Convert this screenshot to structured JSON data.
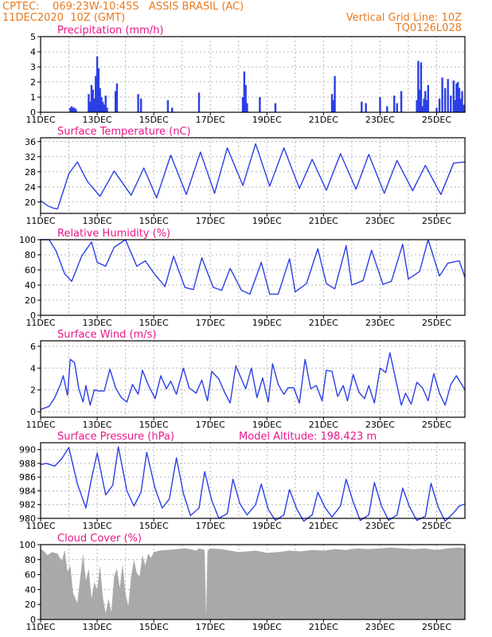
{
  "header": {
    "line1": "CPTEC:    069:23W-10:45S   ASSIS BRASIL (AC)",
    "line2": "11DEC2020  10Z (GMT)",
    "grid_note": "Vertical Grid Line: 10Z",
    "model_code": "TQ0126L028"
  },
  "colors": {
    "header": "#e87a1e",
    "title": "#e8178a",
    "series": "#2b3fe6",
    "cloud": "#a9a9a9",
    "frame": "#000000",
    "grid": "#b4b4b4"
  },
  "time_axis": {
    "start": "11DEC2020 10Z",
    "end": "26DEC2020 10Z",
    "tick_dates": [
      "11DEC",
      "13DEC",
      "15DEC",
      "17DEC",
      "19DEC",
      "21DEC",
      "23DEC",
      "25DEC"
    ],
    "minor_grid_days": [
      "12DEC",
      "14DEC",
      "16DEC",
      "18DEC",
      "20DEC",
      "22DEC",
      "24DEC"
    ]
  },
  "chart_data": [
    {
      "id": "precip",
      "type": "bar",
      "title": "Precipitation (mm/h)",
      "ylim": [
        0,
        5
      ],
      "yticks": [
        0,
        1,
        2,
        3,
        4,
        5
      ],
      "days": [
        1.05,
        1.1,
        1.15,
        1.2,
        1.25,
        1.7,
        1.75,
        1.8,
        1.85,
        1.9,
        1.95,
        2.0,
        2.05,
        2.1,
        2.15,
        2.2,
        2.25,
        2.3,
        2.35,
        2.65,
        2.7,
        3.45,
        3.55,
        4.5,
        4.65,
        5.6,
        7.15,
        7.2,
        7.25,
        7.3,
        7.75,
        8.3,
        10.3,
        10.35,
        10.4,
        11.35,
        11.5,
        12.0,
        12.25,
        12.5,
        12.6,
        12.75,
        13.3,
        13.35,
        13.4,
        13.45,
        13.5,
        13.55,
        13.6,
        13.65,
        13.7,
        14.0,
        14.1,
        14.2,
        14.3,
        14.4,
        14.5,
        14.6,
        14.65,
        14.7,
        14.75,
        14.8,
        14.85,
        14.9,
        14.95
      ],
      "values": [
        0.3,
        0.4,
        0.3,
        0.3,
        0.2,
        1.2,
        0.7,
        1.8,
        1.5,
        0.9,
        2.4,
        3.7,
        2.9,
        1.6,
        1.0,
        0.7,
        0.5,
        1.1,
        0.3,
        1.4,
        1.9,
        1.2,
        0.9,
        0.8,
        0.3,
        1.3,
        1.0,
        2.7,
        1.8,
        0.6,
        1.0,
        0.6,
        1.2,
        0.8,
        2.4,
        0.7,
        0.6,
        1.0,
        0.4,
        1.1,
        0.6,
        1.4,
        0.8,
        3.4,
        1.5,
        3.3,
        0.4,
        0.9,
        1.4,
        0.8,
        1.8,
        0.3,
        0.9,
        2.3,
        1.6,
        2.2,
        1.1,
        2.1,
        0.8,
        1.9,
        2.0,
        1.6,
        0.9,
        1.4,
        0.5
      ]
    },
    {
      "id": "temp",
      "type": "line",
      "title": "Surface Temperature (nC)",
      "ylim": [
        17,
        37
      ],
      "yticks": [
        20,
        24,
        28,
        32,
        36
      ],
      "days": [
        0,
        0.25,
        0.45,
        0.6,
        1.0,
        1.3,
        1.65,
        2.1,
        2.6,
        3.2,
        3.65,
        4.1,
        4.6,
        5.15,
        5.65,
        6.15,
        6.6,
        7.15,
        7.6,
        8.1,
        8.6,
        9.15,
        9.6,
        10.1,
        10.6,
        11.15,
        11.6,
        12.15,
        12.6,
        13.15,
        13.6,
        14.15,
        14.6,
        15.0
      ],
      "values": [
        20.4,
        19.0,
        18.4,
        18.2,
        27.5,
        30.6,
        25.5,
        21.5,
        28.2,
        21.8,
        29.0,
        21.1,
        32.4,
        22.0,
        33.2,
        22.3,
        34.3,
        24.4,
        35.4,
        24.2,
        34.3,
        23.6,
        31.3,
        23.1,
        32.8,
        23.4,
        32.6,
        22.3,
        31.0,
        23.0,
        29.7,
        22.0,
        30.3,
        30.6
      ]
    },
    {
      "id": "rh",
      "type": "line",
      "title": "Relative Humidity (%)",
      "ylim": [
        0,
        100
      ],
      "yticks": [
        0,
        20,
        40,
        60,
        80,
        100
      ],
      "days": [
        0,
        0.3,
        0.55,
        0.85,
        1.1,
        1.45,
        1.8,
        2.0,
        2.3,
        2.6,
        3.0,
        3.4,
        3.7,
        4.0,
        4.4,
        4.7,
        5.1,
        5.4,
        5.7,
        6.1,
        6.4,
        6.7,
        7.1,
        7.4,
        7.8,
        8.1,
        8.4,
        8.8,
        9.0,
        9.4,
        9.8,
        10.1,
        10.4,
        10.8,
        11.0,
        11.4,
        11.7,
        12.1,
        12.4,
        12.8,
        13.0,
        13.4,
        13.7,
        14.1,
        14.4,
        14.8,
        15.0
      ],
      "values": [
        100,
        100,
        85,
        55,
        45,
        78,
        97,
        70,
        65,
        90,
        100,
        65,
        72,
        56,
        38,
        78,
        37,
        34,
        76,
        37,
        33,
        62,
        33,
        28,
        70,
        28,
        28,
        75,
        31,
        42,
        88,
        42,
        35,
        92,
        40,
        46,
        86,
        41,
        45,
        94,
        48,
        58,
        100,
        52,
        69,
        72,
        50
      ]
    },
    {
      "id": "wind",
      "type": "line",
      "title": "Surface Wind (m/s)",
      "ylim": [
        -0.5,
        6.5
      ],
      "yticks": [
        0,
        2,
        4,
        6
      ],
      "days": [
        0.0,
        0.3,
        0.5,
        0.7,
        0.8,
        0.95,
        1.05,
        1.2,
        1.35,
        1.5,
        1.6,
        1.75,
        1.9,
        2.05,
        2.25,
        2.45,
        2.65,
        2.85,
        3.05,
        3.25,
        3.45,
        3.6,
        3.8,
        4.05,
        4.25,
        4.45,
        4.6,
        4.8,
        5.05,
        5.25,
        5.5,
        5.7,
        5.9,
        6.05,
        6.3,
        6.5,
        6.7,
        6.9,
        7.05,
        7.25,
        7.45,
        7.65,
        7.85,
        8.05,
        8.2,
        8.4,
        8.6,
        8.75,
        8.95,
        9.15,
        9.35,
        9.55,
        9.75,
        9.95,
        10.1,
        10.3,
        10.5,
        10.7,
        10.85,
        11.05,
        11.25,
        11.45,
        11.6,
        11.8,
        12.0,
        12.2,
        12.35,
        12.55,
        12.75,
        12.9,
        13.1,
        13.3,
        13.5,
        13.7,
        13.9,
        14.1,
        14.3,
        14.5,
        14.7,
        15.0
      ],
      "values": [
        0.2,
        0.5,
        1.3,
        2.5,
        3.3,
        1.5,
        4.8,
        4.5,
        2.1,
        0.9,
        2.4,
        0.6,
        2.0,
        1.9,
        1.9,
        3.9,
        2.2,
        1.3,
        0.9,
        2.5,
        1.6,
        3.8,
        2.5,
        1.2,
        3.3,
        2.1,
        2.8,
        1.6,
        4.0,
        2.2,
        1.7,
        2.9,
        1.0,
        3.7,
        3.0,
        1.8,
        0.8,
        4.2,
        3.3,
        2.1,
        4.0,
        1.3,
        3.1,
        0.9,
        4.4,
        2.5,
        1.6,
        2.2,
        2.2,
        0.8,
        4.8,
        2.1,
        2.4,
        1.0,
        3.8,
        3.7,
        1.4,
        2.4,
        1.0,
        3.4,
        1.8,
        1.2,
        2.4,
        0.8,
        4.0,
        3.6,
        5.4,
        3.0,
        0.6,
        1.7,
        0.7,
        2.7,
        2.2,
        1.0,
        3.5,
        1.7,
        0.6,
        2.5,
        3.3,
        2.0
      ]
    },
    {
      "id": "pres",
      "type": "line",
      "title": "Surface Pressure (hPa)",
      "annotation": "Model Altitude: 198.423 m",
      "ylim": [
        980,
        991
      ],
      "yticks": [
        980,
        982,
        984,
        986,
        988,
        990
      ],
      "days": [
        0,
        0.2,
        0.5,
        0.75,
        1.0,
        1.3,
        1.6,
        1.8,
        2.0,
        2.3,
        2.55,
        2.75,
        3.05,
        3.3,
        3.55,
        3.75,
        4.05,
        4.3,
        4.55,
        4.8,
        5.05,
        5.3,
        5.6,
        5.8,
        6.05,
        6.3,
        6.6,
        6.8,
        7.05,
        7.3,
        7.6,
        7.8,
        8.05,
        8.3,
        8.6,
        8.8,
        9.05,
        9.3,
        9.6,
        9.8,
        10.05,
        10.3,
        10.6,
        10.8,
        11.05,
        11.3,
        11.6,
        11.8,
        12.05,
        12.3,
        12.6,
        12.8,
        13.05,
        13.3,
        13.6,
        13.8,
        14.05,
        14.3,
        14.6,
        14.8,
        15.0
      ],
      "values": [
        987.8,
        988.0,
        987.6,
        988.7,
        990.3,
        985.0,
        981.5,
        985.8,
        989.5,
        983.4,
        984.8,
        990.4,
        984.0,
        981.8,
        983.8,
        989.6,
        984.3,
        981.5,
        982.8,
        988.8,
        983.6,
        980.4,
        981.5,
        986.8,
        982.6,
        980.0,
        980.7,
        985.7,
        982.1,
        980.5,
        982.0,
        985.0,
        981.3,
        979.7,
        980.5,
        984.2,
        981.4,
        979.6,
        980.5,
        983.8,
        981.6,
        980.2,
        981.8,
        985.7,
        982.4,
        979.7,
        980.5,
        985.2,
        981.8,
        979.7,
        980.5,
        984.4,
        981.6,
        979.7,
        980.3,
        985.1,
        981.7,
        979.6,
        980.8,
        981.8,
        982.1
      ]
    },
    {
      "id": "cloud",
      "type": "area",
      "title": "Cloud Cover (%)",
      "ylim": [
        0,
        100
      ],
      "yticks": [
        0,
        20,
        40,
        60,
        80,
        100
      ],
      "days": [
        0.0,
        0.1,
        0.25,
        0.4,
        0.6,
        0.75,
        0.85,
        0.95,
        1.05,
        1.15,
        1.3,
        1.4,
        1.5,
        1.6,
        1.7,
        1.8,
        1.9,
        2.0,
        2.1,
        2.2,
        2.3,
        2.4,
        2.5,
        2.6,
        2.7,
        2.8,
        2.9,
        3.0,
        3.1,
        3.2,
        3.3,
        3.4,
        3.5,
        3.6,
        3.7,
        3.8,
        3.9,
        4.0,
        4.2,
        4.5,
        4.8,
        5.1,
        5.3,
        5.5,
        5.6,
        5.7,
        5.8,
        5.85,
        5.9,
        6.0,
        6.4,
        7.0,
        7.6,
        8.0,
        8.4,
        8.8,
        9.2,
        9.6,
        10.0,
        10.4,
        10.8,
        11.2,
        11.6,
        12.0,
        12.4,
        12.8,
        13.2,
        13.6,
        14.0,
        14.4,
        14.8,
        15.0
      ],
      "values": [
        94,
        92,
        86,
        90,
        88,
        78,
        93,
        64,
        72,
        35,
        22,
        55,
        88,
        52,
        68,
        28,
        50,
        40,
        72,
        30,
        8,
        28,
        10,
        58,
        68,
        42,
        74,
        35,
        18,
        58,
        80,
        62,
        58,
        86,
        72,
        88,
        82,
        90,
        92,
        93,
        94,
        95,
        94,
        92,
        95,
        94,
        93,
        5,
        92,
        95,
        94,
        90,
        92,
        89,
        90,
        92,
        91,
        93,
        92,
        94,
        93,
        95,
        94,
        95,
        96,
        95,
        94,
        95,
        93,
        95,
        96,
        95
      ]
    }
  ]
}
